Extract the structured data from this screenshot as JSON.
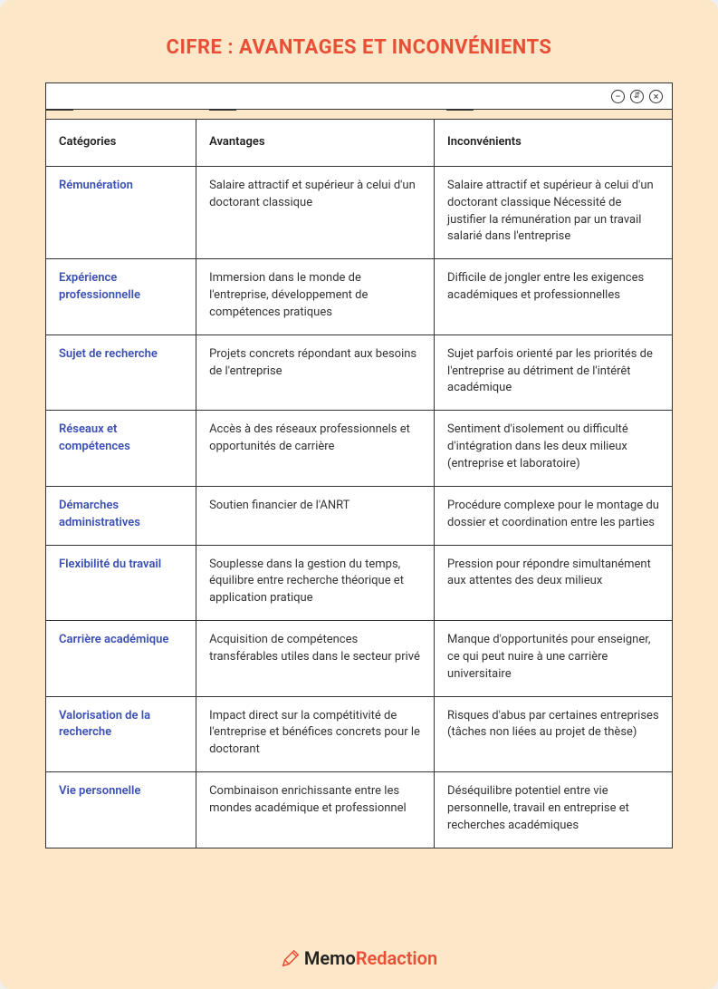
{
  "colors": {
    "page_bg": "#fce8c8",
    "white": "#ffffff",
    "border": "#333333",
    "title_color": "#e94f37",
    "category_color": "#3a4fb3",
    "body_text": "#333333",
    "footer_black": "#222222",
    "footer_accent": "#e94f37"
  },
  "typography": {
    "title_fontsize": 22,
    "header_fontsize": 13,
    "body_fontsize": 13,
    "footer_fontsize": 20
  },
  "title": "CIFRE : AVANTAGES ET INCONVÉNIENTS",
  "toolbar": {
    "icons": [
      "minimize",
      "ai",
      "close"
    ]
  },
  "table": {
    "columns": [
      "Catégories",
      "Avantages",
      "Inconvénients"
    ],
    "rows": [
      {
        "category": "Rémunération",
        "advantage": "Salaire attractif et supérieur à celui d'un doctorant classique",
        "disadvantage": "Salaire attractif et supérieur à celui d'un doctorant classique Nécessité de justifier la rémunération par un travail salarié dans l'entreprise"
      },
      {
        "category": "Expérience professionnelle",
        "advantage": "Immersion dans le monde de l'entreprise, développement de compétences pratiques",
        "disadvantage": "Difficile de jongler entre les exigences académiques et professionnelles"
      },
      {
        "category": "Sujet de recherche",
        "advantage": "Projets concrets répondant aux besoins de l'entreprise",
        "disadvantage": "Sujet parfois orienté par les priorités de l'entreprise au détriment de l'intérêt académique"
      },
      {
        "category": "Réseaux et compétences",
        "advantage": "Accès à des réseaux professionnels et opportunités de carrière",
        "disadvantage": "Sentiment d'isolement ou difficulté d'intégration dans les deux milieux (entreprise et laboratoire)"
      },
      {
        "category": "Démarches administratives",
        "advantage": "Soutien financier de l'ANRT",
        "disadvantage": "Procédure complexe pour le montage du dossier et coordination entre les parties"
      },
      {
        "category": "Flexibilité du travail",
        "advantage": "Souplesse dans la gestion du temps, équilibre entre recherche théorique et application pratique",
        "disadvantage": "Pression pour répondre simultanément aux attentes des deux milieux"
      },
      {
        "category": "Carrière académique",
        "advantage": "Acquisition de compétences transférables utiles dans le secteur privé",
        "disadvantage": "Manque d'opportunités pour enseigner, ce qui peut nuire à une carrière universitaire"
      },
      {
        "category": "Valorisation de la recherche",
        "advantage": "Impact direct sur la compétitivité de l'entreprise et bénéfices concrets pour le doctorant",
        "disadvantage": "Risques d'abus par certaines entreprises (tâches non liées au projet de thèse)"
      },
      {
        "category": "Vie personnelle",
        "advantage": "Combinaison enrichissante entre les mondes académique et professionnel",
        "disadvantage": "Déséquilibre potentiel entre vie personnelle, travail en entreprise et recherches académiques"
      }
    ]
  },
  "footer": {
    "brand_part1": "Memo",
    "brand_part2": "Redaction"
  }
}
